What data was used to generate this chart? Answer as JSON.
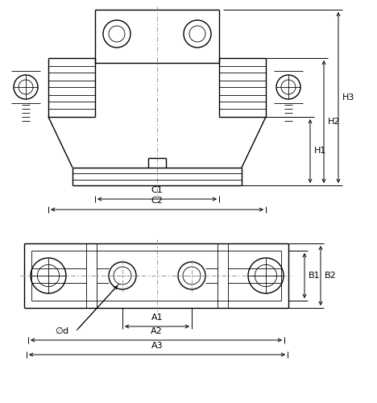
{
  "bg_color": "#ffffff",
  "line_color": "#000000",
  "lw_main": 1.0,
  "lw_thin": 0.6,
  "lw_dim": 0.7,
  "fig_width": 4.68,
  "fig_height": 5.0,
  "dpi": 100
}
